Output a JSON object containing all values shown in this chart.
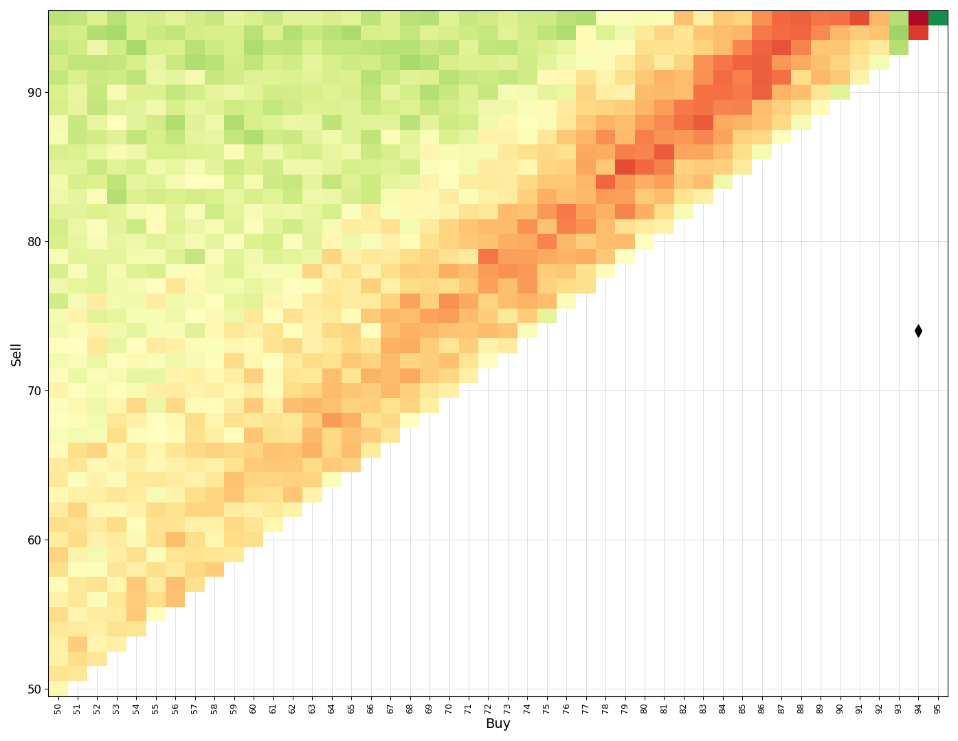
{
  "buy_min": 50,
  "buy_max": 95,
  "sell_min": 50,
  "sell_max": 95,
  "xlabel": "Buy",
  "ylabel": "Sell",
  "background_color": "#ffffff",
  "grid_color": "#d3d3d3",
  "marker_buy": 94,
  "marker_sell": 74,
  "marker_color": "#000000",
  "tick_fontsize": 9,
  "label_fontsize": 14,
  "axis_tick_y": [
    50,
    60,
    70,
    80,
    90
  ]
}
